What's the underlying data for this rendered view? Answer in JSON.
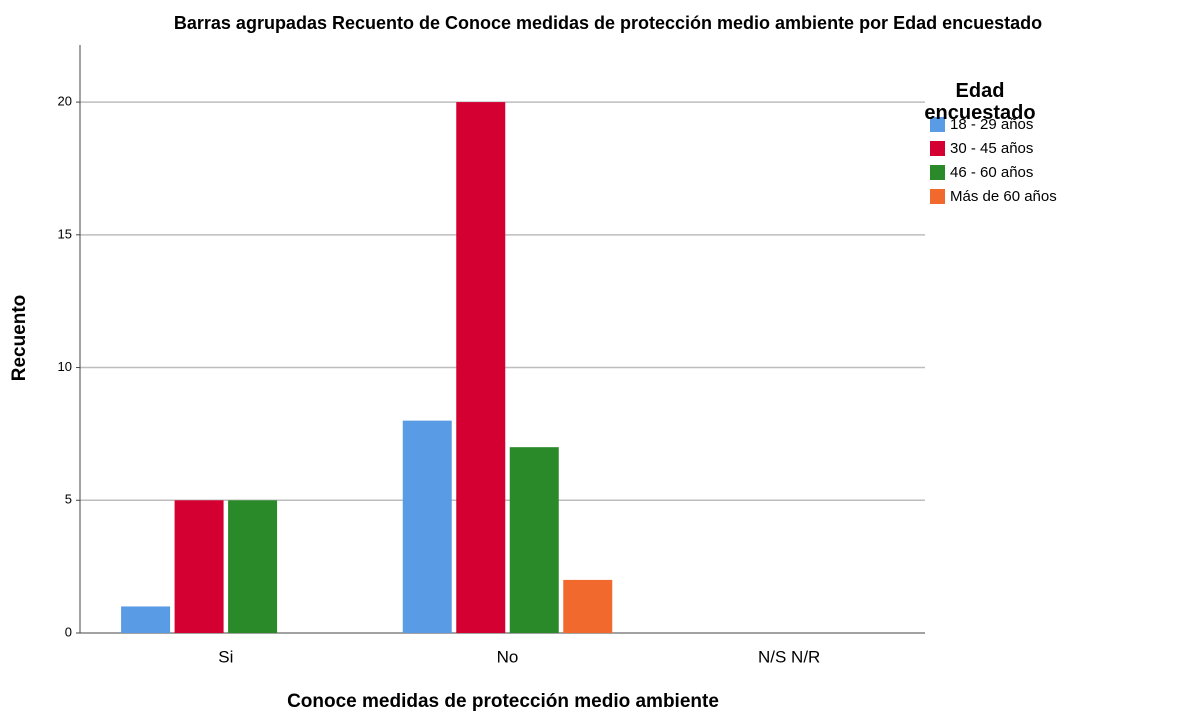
{
  "chart_data": {
    "type": "bar",
    "title": "Barras agrupadas Recuento de Conoce medidas de protección medio ambiente por Edad encuestado",
    "x_label": "Conoce medidas de protección medio ambiente",
    "y_label": "Recuento",
    "legend_title": "Edad encuestado",
    "categories": [
      "Si",
      "No",
      "N/S N/R"
    ],
    "series": [
      {
        "name": "18 - 29 años",
        "color": "#5a9be6",
        "values": [
          1,
          8,
          0
        ]
      },
      {
        "name": "30 - 45 años",
        "color": "#d50032",
        "values": [
          5,
          20,
          0
        ]
      },
      {
        "name": "46 - 60 años",
        "color": "#2a8a2a",
        "values": [
          5,
          7,
          0
        ]
      },
      {
        "name": "Más de 60 años",
        "color": "#f2692e",
        "values": [
          0,
          2,
          0
        ]
      }
    ],
    "ylim": [
      0,
      22
    ],
    "yticks": [
      0,
      5,
      10,
      15,
      20
    ],
    "grid": true,
    "legend": "right"
  }
}
